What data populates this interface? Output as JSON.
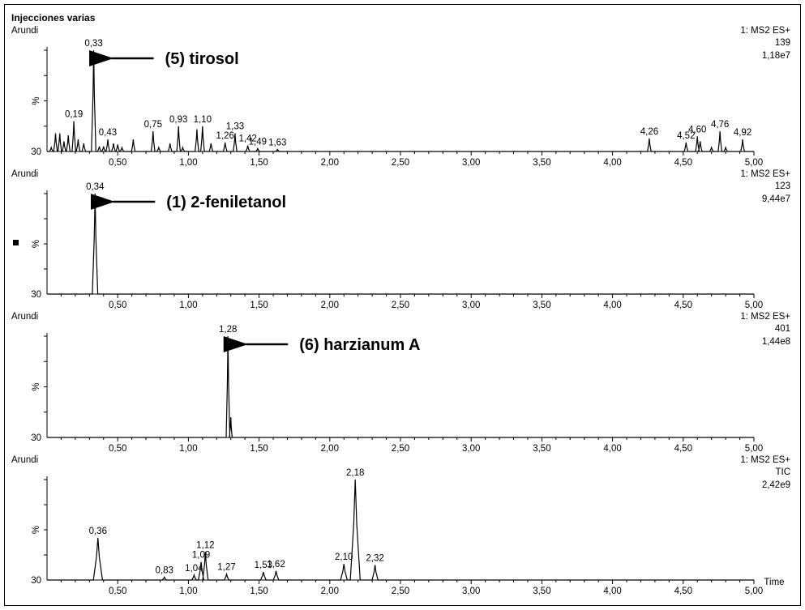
{
  "window": {
    "title": "Injecciones  varias"
  },
  "chart_data": [
    {
      "type": "line",
      "label_left": "Arundi",
      "scan": "1: MS2 ES+",
      "channel": "139",
      "intensity": "1,18e7",
      "ylabel": "%",
      "ybase": "30",
      "xlabel": "",
      "xlim": [
        0,
        5.0
      ],
      "ylim": [
        0,
        100
      ],
      "xticks": [
        "0,50",
        "1,00",
        "1,50",
        "2,00",
        "2,50",
        "3,00",
        "3,50",
        "4,00",
        "4,50",
        "5,00"
      ],
      "peaks": [
        {
          "x": 0.03,
          "y": 4,
          "w": 0.008
        },
        {
          "x": 0.06,
          "y": 18,
          "w": 0.008
        },
        {
          "x": 0.09,
          "y": 18,
          "w": 0.008
        },
        {
          "x": 0.12,
          "y": 10,
          "w": 0.008
        },
        {
          "x": 0.15,
          "y": 16,
          "w": 0.008
        },
        {
          "x": 0.19,
          "y": 30,
          "w": 0.008,
          "label": "0,19"
        },
        {
          "x": 0.22,
          "y": 12,
          "w": 0.008
        },
        {
          "x": 0.26,
          "y": 8,
          "w": 0.008
        },
        {
          "x": 0.33,
          "y": 100,
          "w": 0.01,
          "label": "0,33"
        },
        {
          "x": 0.37,
          "y": 5,
          "w": 0.008
        },
        {
          "x": 0.4,
          "y": 5,
          "w": 0.008
        },
        {
          "x": 0.43,
          "y": 12,
          "w": 0.008,
          "label": "0,43"
        },
        {
          "x": 0.47,
          "y": 8,
          "w": 0.008
        },
        {
          "x": 0.5,
          "y": 7,
          "w": 0.008
        },
        {
          "x": 0.53,
          "y": 4,
          "w": 0.008
        },
        {
          "x": 0.61,
          "y": 12,
          "w": 0.008
        },
        {
          "x": 0.75,
          "y": 20,
          "w": 0.008,
          "label": "0,75"
        },
        {
          "x": 0.79,
          "y": 4,
          "w": 0.008
        },
        {
          "x": 0.87,
          "y": 8,
          "w": 0.008
        },
        {
          "x": 0.93,
          "y": 25,
          "w": 0.008,
          "label": "0,93"
        },
        {
          "x": 0.96,
          "y": 4,
          "w": 0.008
        },
        {
          "x": 1.06,
          "y": 22,
          "w": 0.008
        },
        {
          "x": 1.1,
          "y": 25,
          "w": 0.008,
          "label": "1,10"
        },
        {
          "x": 1.16,
          "y": 8,
          "w": 0.008
        },
        {
          "x": 1.26,
          "y": 9,
          "w": 0.008,
          "label": "1,26"
        },
        {
          "x": 1.33,
          "y": 18,
          "w": 0.008,
          "label": "1,33"
        },
        {
          "x": 1.42,
          "y": 6,
          "w": 0.008,
          "label": "1,42"
        },
        {
          "x": 1.49,
          "y": 3,
          "w": 0.008,
          "label": "1,49"
        },
        {
          "x": 1.63,
          "y": 2,
          "w": 0.008,
          "label": "1,63"
        },
        {
          "x": 4.26,
          "y": 13,
          "w": 0.008,
          "label": "4,26"
        },
        {
          "x": 4.52,
          "y": 9,
          "w": 0.008,
          "label": "4,52"
        },
        {
          "x": 4.6,
          "y": 15,
          "w": 0.008,
          "label": "4,60"
        },
        {
          "x": 4.62,
          "y": 10,
          "w": 0.008
        },
        {
          "x": 4.7,
          "y": 4,
          "w": 0.008
        },
        {
          "x": 4.76,
          "y": 20,
          "w": 0.008,
          "label": "4,76"
        },
        {
          "x": 4.8,
          "y": 4,
          "w": 0.008
        },
        {
          "x": 4.92,
          "y": 12,
          "w": 0.008,
          "label": "4,92"
        }
      ],
      "annotation": {
        "text": "(5) tirosol",
        "x": 0.33
      }
    },
    {
      "type": "line",
      "label_left": "Arundi",
      "scan": "1: MS2 ES+",
      "channel": "123",
      "intensity": "9,44e7",
      "ylabel": "%",
      "ybase": "30",
      "xlabel": "",
      "xlim": [
        0,
        5.0
      ],
      "ylim": [
        0,
        100
      ],
      "xticks": [
        "0,50",
        "1,00",
        "1,50",
        "2,00",
        "2,50",
        "3,00",
        "3,50",
        "4,00",
        "4,50",
        "5,00"
      ],
      "peaks": [
        {
          "x": 0.34,
          "y": 100,
          "w": 0.012,
          "label": "0,34"
        }
      ],
      "annotation": {
        "text": "(1) 2-feniletanol",
        "x": 0.34
      }
    },
    {
      "type": "line",
      "label_left": "Arundi",
      "scan": "1: MS2 ES+",
      "channel": "401",
      "intensity": "1,44e8",
      "ylabel": "%",
      "ybase": "30",
      "xlabel": "",
      "xlim": [
        0,
        5.0
      ],
      "ylim": [
        0,
        100
      ],
      "xticks": [
        "0,50",
        "1,00",
        "1,50",
        "2,00",
        "2,50",
        "3,00",
        "3,50",
        "4,00",
        "4,50",
        "5,00"
      ],
      "peaks": [
        {
          "x": 1.28,
          "y": 100,
          "w": 0.008,
          "label": "1,28"
        },
        {
          "x": 1.3,
          "y": 20,
          "w": 0.006
        }
      ],
      "annotation": {
        "text": "(6) harzianum A",
        "x": 1.28
      }
    },
    {
      "type": "line",
      "label_left": "Arundi",
      "scan": "1: MS2 ES+",
      "channel": "TIC",
      "intensity": "2,42e9",
      "ylabel": "%",
      "ybase": "30",
      "xlabel": "Time",
      "xlim": [
        0,
        5.0
      ],
      "ylim": [
        0,
        100
      ],
      "xticks": [
        "0,50",
        "1,00",
        "1,50",
        "2,00",
        "2,50",
        "3,00",
        "3,50",
        "4,00",
        "4,50",
        "5,00"
      ],
      "peaks": [
        {
          "x": 0.36,
          "y": 42,
          "w": 0.02,
          "label": "0,36"
        },
        {
          "x": 0.83,
          "y": 3,
          "w": 0.01,
          "label": "0,83"
        },
        {
          "x": 1.04,
          "y": 5,
          "w": 0.01,
          "label": "1,04"
        },
        {
          "x": 1.09,
          "y": 18,
          "w": 0.012,
          "label": "1,09"
        },
        {
          "x": 1.12,
          "y": 28,
          "w": 0.012,
          "label": "1,12"
        },
        {
          "x": 1.27,
          "y": 6,
          "w": 0.01,
          "label": "1,27"
        },
        {
          "x": 1.53,
          "y": 8,
          "w": 0.012,
          "label": "1,53"
        },
        {
          "x": 1.62,
          "y": 9,
          "w": 0.012,
          "label": "1,62"
        },
        {
          "x": 2.1,
          "y": 16,
          "w": 0.015,
          "label": "2,10"
        },
        {
          "x": 2.18,
          "y": 100,
          "w": 0.022,
          "label": "2,18"
        },
        {
          "x": 2.32,
          "y": 15,
          "w": 0.013,
          "label": "2,32"
        }
      ]
    }
  ]
}
